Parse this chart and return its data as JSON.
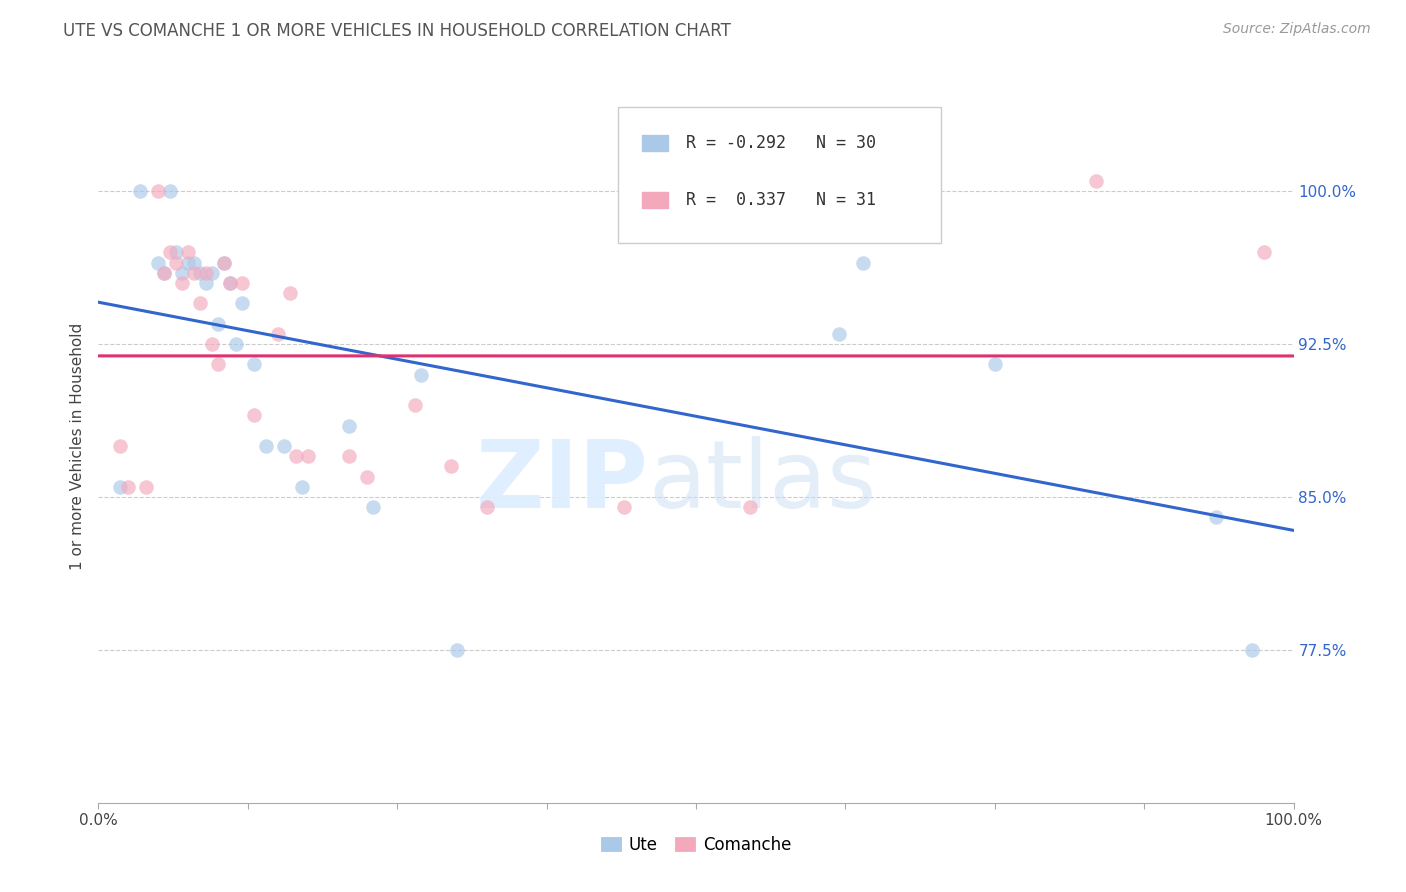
{
  "title": "UTE VS COMANCHE 1 OR MORE VEHICLES IN HOUSEHOLD CORRELATION CHART",
  "source": "Source: ZipAtlas.com",
  "ylabel": "1 or more Vehicles in Household",
  "ytick_labels": [
    "100.0%",
    "92.5%",
    "85.0%",
    "77.5%"
  ],
  "ytick_values": [
    1.0,
    0.925,
    0.85,
    0.775
  ],
  "xlim": [
    0.0,
    1.0
  ],
  "ylim": [
    0.7,
    1.05
  ],
  "ute_color": "#aac8e8",
  "comanche_color": "#f4a8bc",
  "ute_line_color": "#3366cc",
  "comanche_line_color": "#e03070",
  "legend_r_ute": "R = -0.292",
  "legend_n_ute": "N = 30",
  "legend_r_comanche": "R =  0.337",
  "legend_n_comanche": "N = 31",
  "ute_scatter_x": [
    0.018,
    0.035,
    0.05,
    0.055,
    0.06,
    0.065,
    0.07,
    0.075,
    0.08,
    0.085,
    0.09,
    0.095,
    0.1,
    0.105,
    0.11,
    0.115,
    0.12,
    0.13,
    0.14,
    0.155,
    0.17,
    0.21,
    0.23,
    0.27,
    0.3,
    0.62,
    0.64,
    0.75,
    0.935,
    0.965
  ],
  "ute_scatter_y": [
    0.855,
    1.0,
    0.965,
    0.96,
    1.0,
    0.97,
    0.96,
    0.965,
    0.965,
    0.96,
    0.955,
    0.96,
    0.935,
    0.965,
    0.955,
    0.925,
    0.945,
    0.915,
    0.875,
    0.875,
    0.855,
    0.885,
    0.845,
    0.91,
    0.775,
    0.93,
    0.965,
    0.915,
    0.84,
    0.775
  ],
  "comanche_scatter_x": [
    0.018,
    0.025,
    0.04,
    0.05,
    0.055,
    0.06,
    0.065,
    0.07,
    0.075,
    0.08,
    0.085,
    0.09,
    0.095,
    0.1,
    0.105,
    0.11,
    0.12,
    0.13,
    0.15,
    0.16,
    0.165,
    0.175,
    0.21,
    0.225,
    0.265,
    0.295,
    0.325,
    0.44,
    0.545,
    0.835,
    0.975
  ],
  "comanche_scatter_y": [
    0.875,
    0.855,
    0.855,
    1.0,
    0.96,
    0.97,
    0.965,
    0.955,
    0.97,
    0.96,
    0.945,
    0.96,
    0.925,
    0.915,
    0.965,
    0.955,
    0.955,
    0.89,
    0.93,
    0.95,
    0.87,
    0.87,
    0.87,
    0.86,
    0.895,
    0.865,
    0.845,
    0.845,
    0.845,
    1.005,
    0.97
  ],
  "marker_size": 110,
  "line_width": 2.2,
  "alpha": 0.65,
  "grid_color": "#cccccc",
  "grid_style": "--",
  "grid_lw": 0.8
}
